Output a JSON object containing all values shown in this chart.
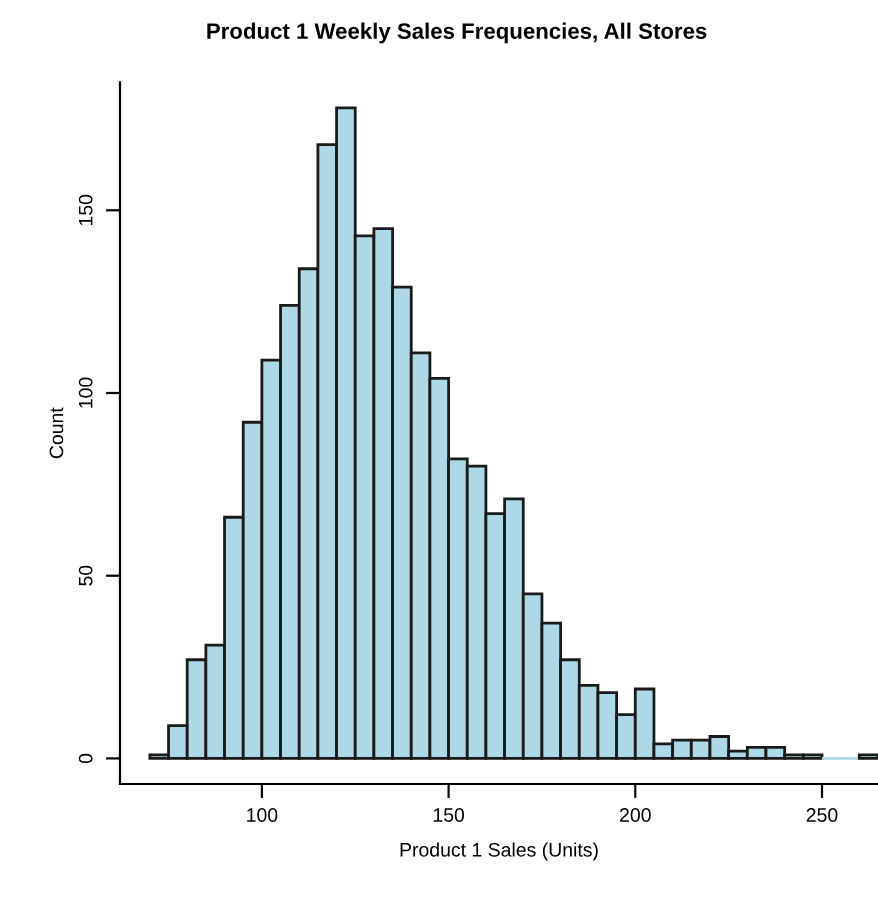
{
  "chart_data": {
    "type": "histogram",
    "title": "Product 1 Weekly Sales Frequencies, All Stores",
    "xlabel": "Product 1 Sales (Units)",
    "ylabel": "Count",
    "color": "#add8e6",
    "bins": [
      70,
      75,
      80,
      85,
      90,
      95,
      100,
      105,
      110,
      115,
      120,
      125,
      130,
      135,
      140,
      145,
      150,
      155,
      160,
      165,
      170,
      175,
      180,
      185,
      190,
      195,
      200,
      205,
      210,
      215,
      220,
      225,
      230,
      235,
      240,
      245,
      250,
      255,
      260,
      265
    ],
    "values": [
      1,
      9,
      27,
      31,
      66,
      92,
      109,
      124,
      134,
      168,
      178,
      143,
      145,
      129,
      111,
      104,
      82,
      80,
      67,
      71,
      45,
      37,
      27,
      20,
      18,
      12,
      19,
      4,
      5,
      5,
      6,
      2,
      3,
      3,
      1,
      1,
      0,
      0,
      1
    ],
    "xlim": [
      62,
      265
    ],
    "ylim": [
      -7,
      185
    ],
    "xticks": [
      100,
      150,
      200,
      250
    ],
    "yticks": [
      0,
      50,
      100,
      150
    ],
    "grid": false
  }
}
